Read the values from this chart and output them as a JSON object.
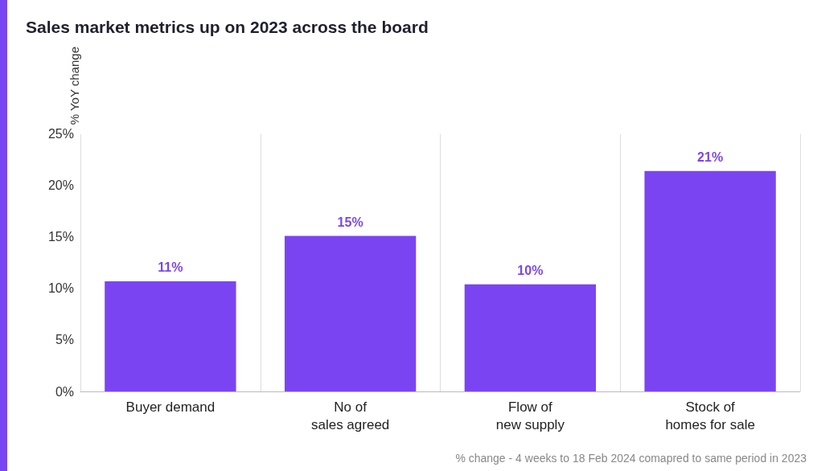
{
  "chart_data": {
    "type": "bar",
    "title": "Sales market metrics up on 2023 across the board",
    "ylabel": "% YoY change",
    "categories": [
      "Buyer demand",
      "No of\nsales agreed",
      "Flow of\nnew supply",
      "Stock of\nhomes for sale"
    ],
    "values": [
      10.7,
      15.1,
      10.4,
      21.4
    ],
    "value_labels": [
      "11%",
      "15%",
      "10%",
      "21%"
    ],
    "color": "#7b44f2",
    "ylim": [
      0,
      25
    ],
    "yticks": [
      {
        "value": 0,
        "label": "0%"
      },
      {
        "value": 5,
        "label": "5%"
      },
      {
        "value": 10,
        "label": "10%"
      },
      {
        "value": 15,
        "label": "15%"
      },
      {
        "value": 20,
        "label": "20%"
      },
      {
        "value": 25,
        "label": "25%"
      }
    ],
    "grid": "x",
    "annotations": [
      "% change - 4 weeks to 18 Feb 2024 comapred to same period in 2023"
    ]
  }
}
